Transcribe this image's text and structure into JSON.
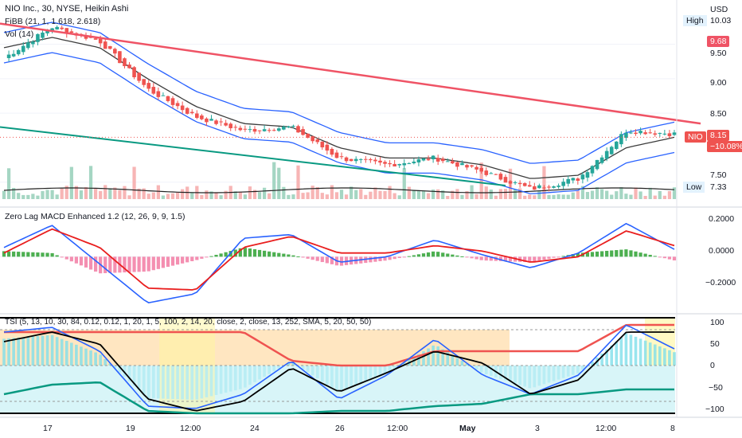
{
  "header": {
    "symbol_line": "NIO Inc., 30, NYSE, Heikin Ashi",
    "fibb_line": "FiBB (21, 1, 1.618, 2.618)",
    "vol_line": "Vol (14)",
    "macd_line": "Zero Lag MACD Enhanced 1.2 (12, 26, 9, 9, 1.5)",
    "tsi_line": "TSI (5, 13, 10, 30, 84, 0.12, 0.12, 1, 20, 1, 5, 100, 2, 14, 20, close, 2, close, 13, 252, SMA, 5, 20, 50, 50)"
  },
  "price_scale": {
    "currency": "USD",
    "ticks": [
      "9.50",
      "9.00",
      "8.50",
      "7.50"
    ],
    "high_label": "High",
    "high_value": "10.03",
    "low_label": "Low",
    "low_value": "7.33",
    "level_tag": "9.68",
    "symbol_tag": "NIO",
    "last_price": "8.15",
    "change": "−10.08%"
  },
  "macd_scale": {
    "ticks": [
      "0.2000",
      "0.0000",
      "−0.2000"
    ]
  },
  "tsi_scale": {
    "ticks": [
      "100",
      "50",
      "0",
      "−50",
      "−100"
    ]
  },
  "time_axis": {
    "labels": [
      "17",
      "19",
      "12:00",
      "24",
      "26",
      "12:00",
      "May",
      "3",
      "12:00",
      "8"
    ]
  },
  "colors": {
    "up": "#26a69a",
    "down": "#ef5350",
    "trendline_red": "#ef5365",
    "trendline_green": "#089981",
    "bb_blue": "#2962ff",
    "basis_dark": "#3c3c3c",
    "macd_blue": "#2962ff",
    "signal_red": "#e91e1e",
    "tsi_band_orange": "#ffe0b2",
    "tsi_band_cyan": "#b2ebf2"
  },
  "chart_data": [
    {
      "type": "candlestick",
      "title": "NIO Inc., 30, NYSE, Heikin Ashi",
      "x": [
        "17",
        "",
        "19",
        "12:00",
        "",
        "24",
        "",
        "26",
        "12:00",
        "",
        "May",
        "3",
        "12:00",
        "",
        "8"
      ],
      "close": [
        9.3,
        9.75,
        9.55,
        8.85,
        8.45,
        8.25,
        8.3,
        7.85,
        7.75,
        7.85,
        7.65,
        7.4,
        7.55,
        8.25,
        8.2
      ],
      "ylim": [
        7.3,
        10.05
      ],
      "high": 10.03,
      "low": 7.33,
      "last": 8.15,
      "change_pct": -10.08,
      "series": [
        {
          "name": "FiBB (21, 1, 1.618, 2.618)",
          "basis": [
            9.45,
            9.6,
            9.45,
            9.0,
            8.6,
            8.35,
            8.3,
            8.0,
            7.85,
            7.85,
            7.75,
            7.55,
            7.6,
            8.0,
            8.15
          ]
        }
      ]
    },
    {
      "type": "line",
      "title": "Zero Lag MACD Enhanced 1.2 (12, 26, 9, 9, 1.5)",
      "ylim": [
        -0.3,
        0.26
      ],
      "series": [
        {
          "values": [
            0.05,
            0.17,
            -0.04,
            -0.25,
            -0.2,
            0.1,
            0.12,
            -0.03,
            0.0,
            0.09,
            0.01,
            -0.06,
            0.02,
            0.18,
            0.04
          ]
        },
        {
          "values": [
            0.02,
            0.15,
            0.05,
            -0.17,
            -0.18,
            0.05,
            0.11,
            0.02,
            0.02,
            0.06,
            0.03,
            -0.03,
            0.0,
            0.14,
            0.06
          ]
        }
      ]
    },
    {
      "type": "line",
      "title": "TSI",
      "ylim": [
        -105,
        105
      ],
      "series": [
        {
          "values": [
            70,
            80,
            30,
            -85,
            -90,
            -60,
            10,
            -70,
            -20,
            55,
            -20,
            -60,
            -20,
            85,
            35
          ]
        },
        {
          "values": [
            50,
            70,
            45,
            -70,
            -95,
            -75,
            -5,
            -55,
            -15,
            30,
            5,
            -60,
            -30,
            70,
            70
          ]
        }
      ]
    }
  ]
}
